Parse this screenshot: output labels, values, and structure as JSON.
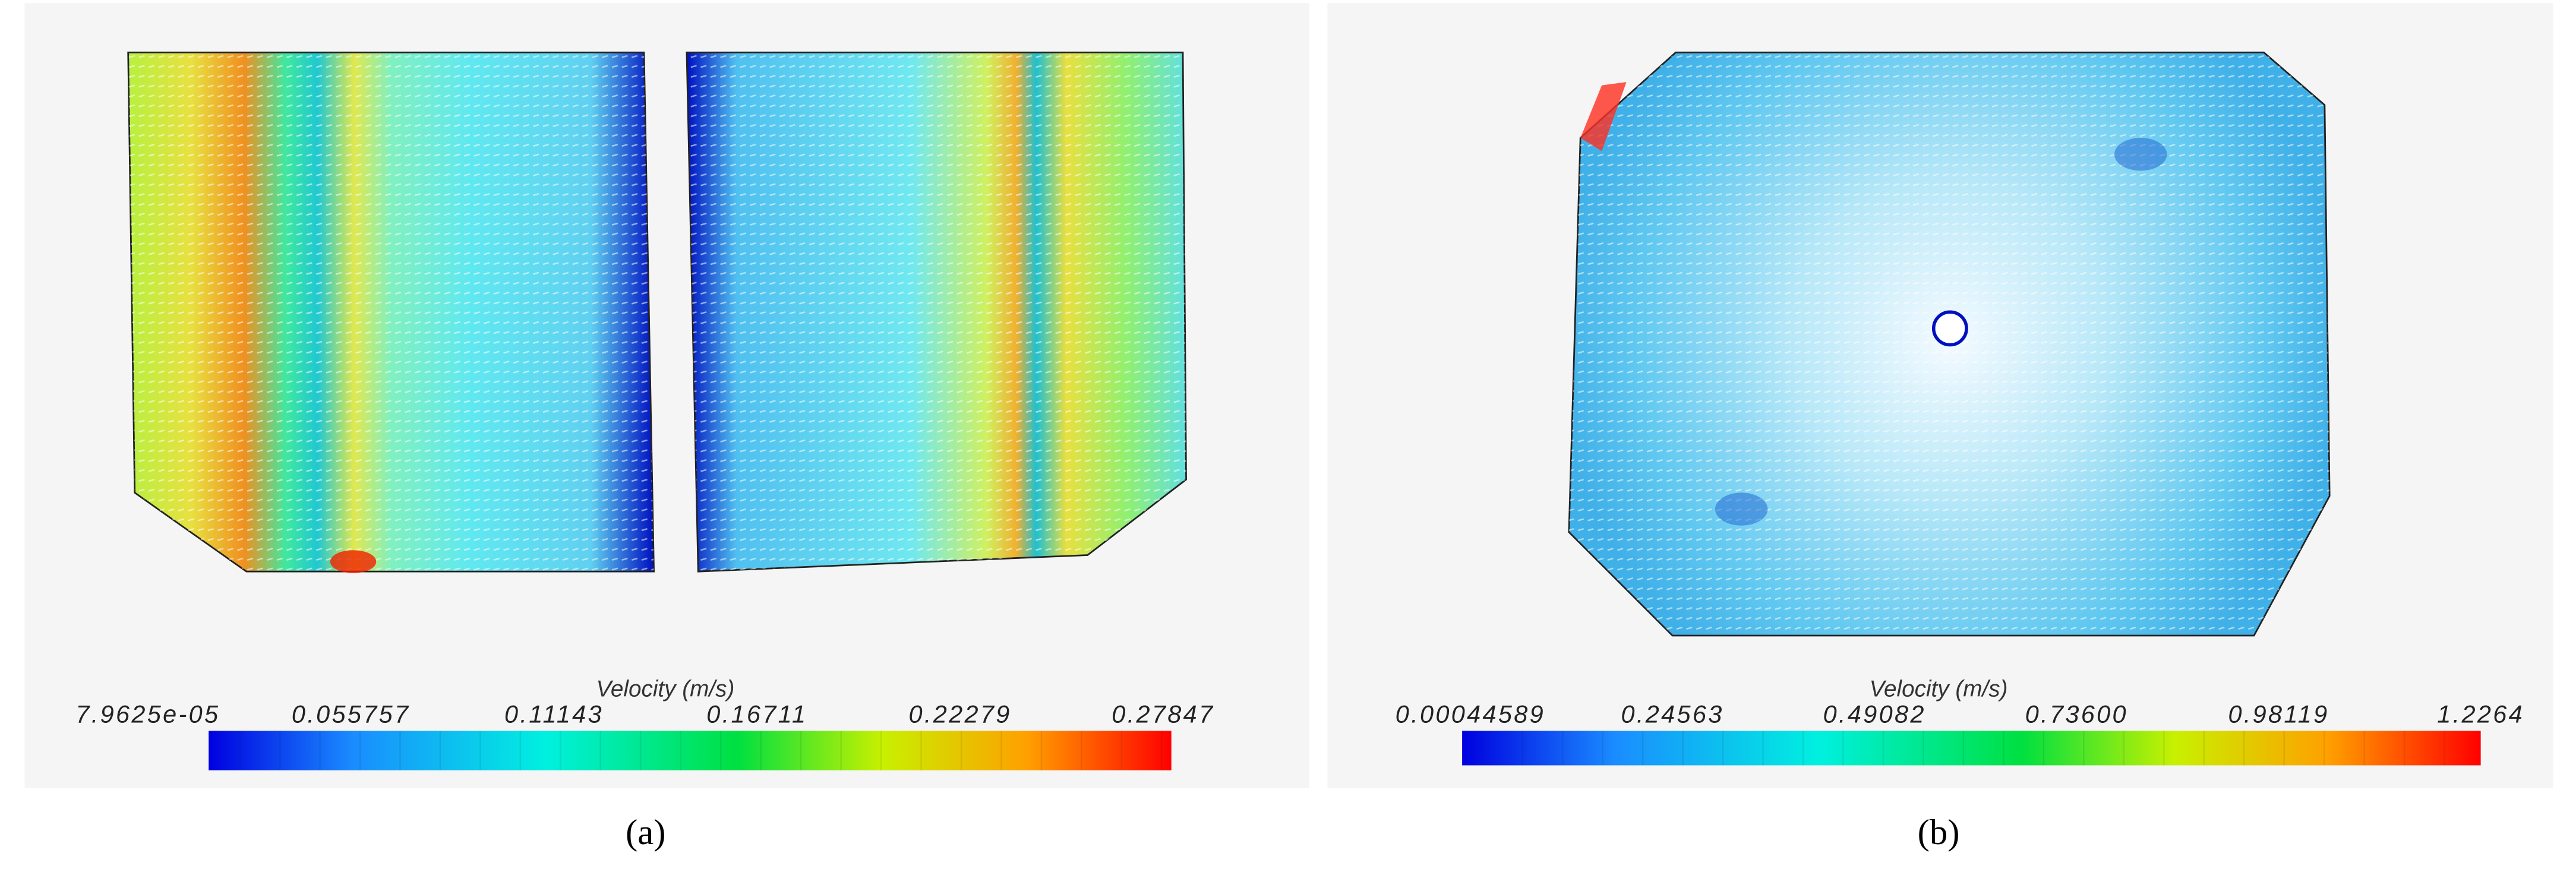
{
  "panels": [
    {
      "label": "(a)",
      "colorbar": {
        "title": "Velocity (m/s)",
        "ticks": [
          "7.9625e-05",
          "0.055757",
          "0.11143",
          "0.16711",
          "0.22279",
          "0.27847"
        ]
      }
    },
    {
      "label": "(b)",
      "colorbar": {
        "title": "Velocity (m/s)",
        "ticks": [
          "0.00044589",
          "0.24563",
          "0.49082",
          "0.73600",
          "0.98119",
          "1.2264"
        ]
      }
    }
  ]
}
